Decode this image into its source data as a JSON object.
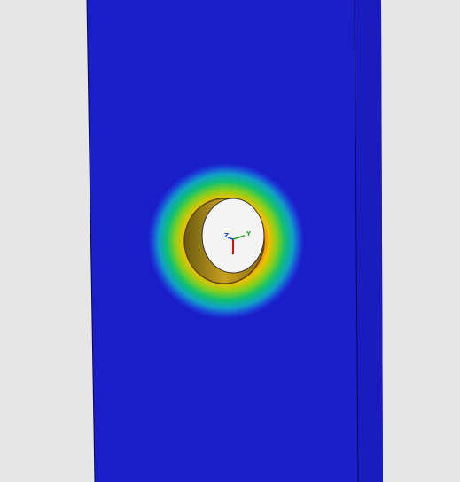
{
  "axis_triad": {
    "labels": [
      "Z",
      "Y"
    ]
  }
}
